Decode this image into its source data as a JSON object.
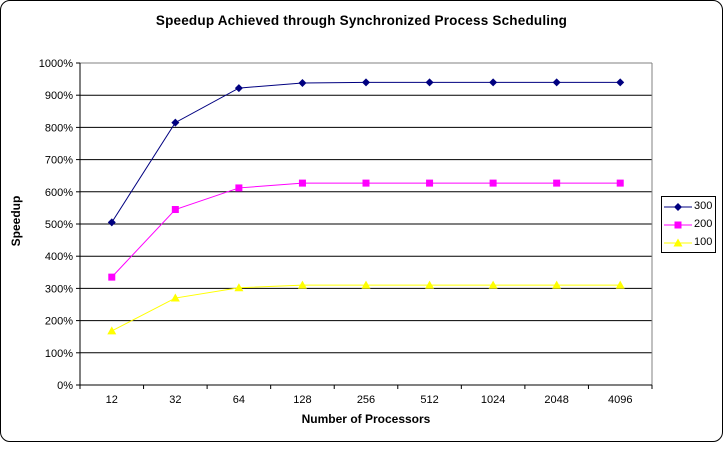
{
  "page": {
    "background": "#FFFFFF",
    "frame_border_color": "#000000"
  },
  "chart_data": {
    "type": "line",
    "title": "Speedup Achieved through Synchronized Process Scheduling",
    "xlabel": "Number of Processors",
    "ylabel": "Speedup",
    "categories": [
      "12",
      "32",
      "64",
      "128",
      "256",
      "512",
      "1024",
      "2048",
      "4096"
    ],
    "series": [
      {
        "name": "300",
        "color": "#000080",
        "marker": "diamond",
        "values": [
          505,
          815,
          922,
          938,
          940,
          940,
          940,
          940,
          940
        ]
      },
      {
        "name": "200",
        "color": "#FF00FF",
        "marker": "square",
        "values": [
          335,
          545,
          612,
          627,
          627,
          627,
          627,
          627,
          627
        ]
      },
      {
        "name": "100",
        "color": "#FFFF00",
        "marker": "triangle",
        "values": [
          168,
          270,
          302,
          310,
          310,
          310,
          310,
          310,
          310
        ]
      }
    ],
    "ylim": [
      0,
      1000
    ],
    "ytick_labels": [
      "0%",
      "100%",
      "200%",
      "300%",
      "400%",
      "500%",
      "600%",
      "700%",
      "800%",
      "900%",
      "1000%"
    ],
    "grid": true,
    "gridline_color": "#000000",
    "plot_border_color": "#808080",
    "axis_color": "#000000",
    "legend_position": "right"
  }
}
